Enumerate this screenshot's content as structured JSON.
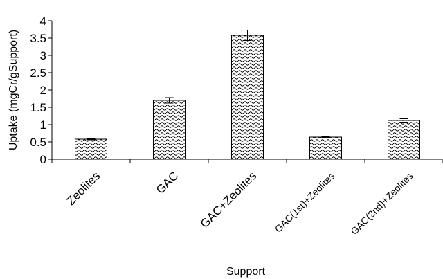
{
  "chart_data": {
    "type": "bar",
    "title": "",
    "xlabel": "Support",
    "ylabel": "Uptake (mgCr/gSupport)",
    "categories": [
      "Zeolites",
      "GAC",
      "GAC+Zeolites",
      "GAC(1st)+Zeolites",
      "GAC(2nd)+Zeolites"
    ],
    "values": [
      0.58,
      1.7,
      3.58,
      0.64,
      1.12
    ],
    "errors": [
      0.02,
      0.08,
      0.15,
      0.02,
      0.05
    ],
    "ylim": [
      0,
      4
    ],
    "yticks": [
      "0",
      "0.5",
      "1",
      "1.5",
      "2",
      "2.5",
      "3",
      "3.5",
      "4"
    ],
    "grid": false,
    "legend": "none",
    "bar_pattern": "wavy-hatch",
    "colors": {
      "bar_stroke": "#000000",
      "pattern": "#000000",
      "background": "#ffffff"
    }
  }
}
